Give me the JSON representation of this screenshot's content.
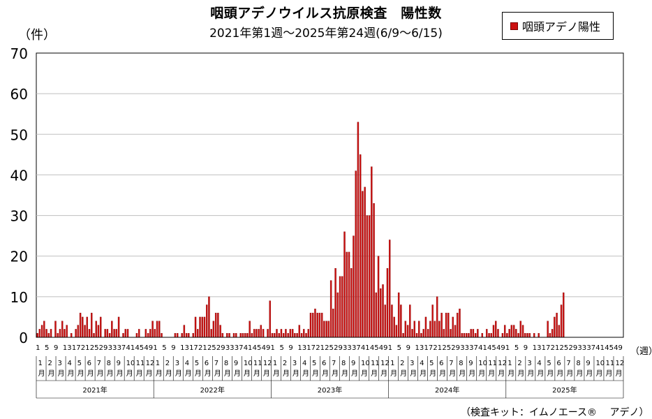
{
  "title": "咽頭アデノウイルス抗原検査　陽性数",
  "subtitle": "2021年第1週～2025年第24週(6/9～6/15)",
  "unit_label": "（件）",
  "week_unit": "（週）",
  "source": "（検査キット：イムノエース® 　アデノ）",
  "colors": {
    "bar": "#cc1111",
    "bar_edge": "#7a0000",
    "grid": "#bfbfbf"
  },
  "chart_data": {
    "type": "bar",
    "legend": {
      "label": "咽頭アデノ陽性",
      "position": "top-right"
    },
    "ylim": [
      0,
      70
    ],
    "yticks": [
      0,
      10,
      20,
      30,
      40,
      50,
      60,
      70
    ],
    "grid": true,
    "weeks_per_year": 52,
    "week_tick_labels": [
      "1",
      "5",
      "9",
      "13",
      "17",
      "21",
      "25",
      "29",
      "33",
      "37",
      "41",
      "45",
      "49"
    ],
    "month_labels": [
      "1\n月",
      "2\n月",
      "3\n月",
      "4\n月",
      "5\n月",
      "6\n月",
      "7\n月",
      "8\n月",
      "9\n月",
      "10\n月",
      "11\n月",
      "12\n月"
    ],
    "years": [
      "2021年",
      "2022年",
      "2023年",
      "2024年",
      "2025年"
    ],
    "series": [
      {
        "name": "咽頭アデノ陽性",
        "values": [
          1,
          2,
          3,
          4,
          2,
          1,
          2,
          0,
          4,
          1,
          2,
          4,
          2,
          3,
          0,
          1,
          0,
          2,
          3,
          6,
          5,
          3,
          5,
          2,
          6,
          1,
          4,
          3,
          5,
          0,
          2,
          2,
          1,
          4,
          2,
          2,
          5,
          0,
          1,
          2,
          2,
          0,
          0,
          0,
          1,
          2,
          0,
          0,
          2,
          1,
          2,
          4,
          2,
          4,
          4,
          1,
          0,
          0,
          0,
          0,
          0,
          1,
          1,
          0,
          1,
          3,
          1,
          1,
          0,
          1,
          5,
          2,
          5,
          5,
          5,
          8,
          10,
          2,
          4,
          6,
          6,
          3,
          1,
          0,
          1,
          1,
          0,
          1,
          1,
          0,
          1,
          1,
          1,
          1,
          4,
          1,
          2,
          2,
          2,
          3,
          2,
          0,
          2,
          9,
          1,
          1,
          2,
          1,
          2,
          1,
          2,
          1,
          2,
          2,
          1,
          1,
          3,
          1,
          2,
          1,
          2,
          6,
          6,
          7,
          6,
          6,
          6,
          4,
          4,
          4,
          14,
          7,
          17,
          11,
          15,
          15,
          26,
          21,
          21,
          17,
          25,
          41,
          53,
          45,
          36,
          37,
          30,
          30,
          42,
          33,
          11,
          20,
          12,
          13,
          8,
          17,
          24,
          8,
          5,
          3,
          11,
          8,
          1,
          4,
          3,
          8,
          2,
          4,
          1,
          4,
          1,
          2,
          5,
          2,
          4,
          8,
          4,
          10,
          4,
          6,
          2,
          6,
          6,
          2,
          5,
          3,
          6,
          7,
          1,
          1,
          1,
          1,
          2,
          2,
          1,
          2,
          0,
          1,
          0,
          2,
          1,
          1,
          3,
          4,
          2,
          0,
          1,
          3,
          1,
          2,
          3,
          3,
          2,
          1,
          4,
          3,
          1,
          1,
          1,
          0,
          1,
          0,
          1,
          0,
          0,
          0,
          4,
          1,
          2,
          5,
          6,
          3,
          8,
          11
        ]
      }
    ]
  }
}
